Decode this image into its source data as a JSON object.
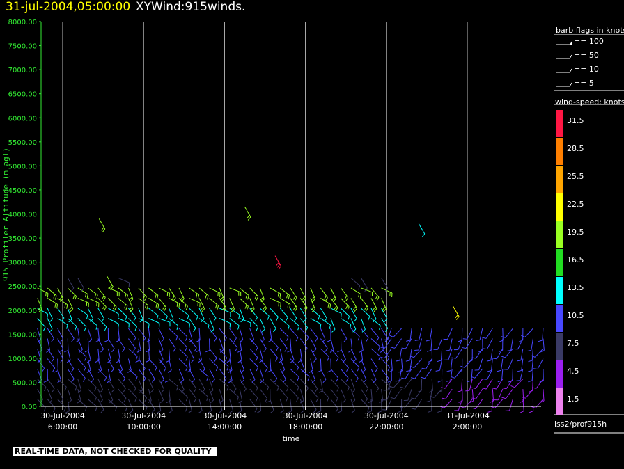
{
  "header": {
    "date": "31-jul-2004,05:00:00",
    "title": "XYWind:915winds."
  },
  "legend": {
    "barb_title": "barb flags in knots",
    "barb_items": [
      "== 100",
      "== 50",
      "== 10",
      "== 5"
    ],
    "speed_title": "wind-speed: knots",
    "speed_levels": [
      {
        "label": "31.5",
        "color": "#ff1744"
      },
      {
        "label": "28.5",
        "color": "#ff7f00"
      },
      {
        "label": "25.5",
        "color": "#ffa500"
      },
      {
        "label": "22.5",
        "color": "#ffff00"
      },
      {
        "label": "19.5",
        "color": "#9aff22"
      },
      {
        "label": "16.5",
        "color": "#22dd22"
      },
      {
        "label": "13.5",
        "color": "#00ffff"
      },
      {
        "label": "10.5",
        "color": "#4848ff"
      },
      {
        "label": "7.5",
        "color": "#3a3a66"
      },
      {
        "label": "4.5",
        "color": "#9b1ff0"
      },
      {
        "label": "1.5",
        "color": "#ee82ee"
      }
    ],
    "source": "iss2/prof915h"
  },
  "notice": "REAL-TIME DATA, NOT CHECKED FOR QUALITY",
  "chart_data": {
    "type": "scatter",
    "title": "XYWind:915winds.",
    "xlabel": "time",
    "ylabel": "915 Profiler Altitude (m agl)",
    "ylim": [
      0,
      8000
    ],
    "yticks": [
      "0.00",
      "500.00",
      "1000.00",
      "1500.00",
      "2000.00",
      "2500.00",
      "3000.00",
      "3500.00",
      "4000.00",
      "4500.00",
      "5000.00",
      "5500.00",
      "6000.00",
      "6500.00",
      "7000.00",
      "7500.00",
      "8000.00"
    ],
    "xticks": [
      {
        "date": "30-Jul-2004",
        "time": "6:00:00"
      },
      {
        "date": "30-Jul-2004",
        "time": "10:00:00"
      },
      {
        "date": "30-Jul-2004",
        "time": "14:00:00"
      },
      {
        "date": "30-Jul-2004",
        "time": "18:00:00"
      },
      {
        "date": "30-Jul-2004",
        "time": "22:00:00"
      },
      {
        "date": "31-Jul-2004",
        "time": "2:00:00"
      }
    ],
    "grid": "vertical lines at x ticks",
    "isolated_barbs": [
      {
        "time_h": 7.8,
        "alt": 3900,
        "speed": 19.5
      },
      {
        "time_h": 8.2,
        "alt": 2700,
        "speed": 19.5
      },
      {
        "time_h": 15.0,
        "alt": 4150,
        "speed": 19.5
      },
      {
        "time_h": 16.5,
        "alt": 3130,
        "speed": 31.5
      },
      {
        "time_h": 23.6,
        "alt": 3800,
        "speed": 13.5
      },
      {
        "time_h": 25.3,
        "alt": 2080,
        "speed": 22.5
      }
    ],
    "profile_columns": {
      "start_time_h": 4.75,
      "end_time_h": 29.75,
      "interval_h": 0.5,
      "lowest_alt": 150,
      "gate_spacing_m": 210
    },
    "profile_speed_by_altitude_band": [
      {
        "alt_range": [
          0,
          700
        ],
        "typical_speed": 7.5
      },
      {
        "alt_range": [
          700,
          1700
        ],
        "typical_speed": 10.5
      },
      {
        "alt_range": [
          1700,
          2100
        ],
        "typical_speed": 13.5
      },
      {
        "alt_range": [
          2100,
          2600
        ],
        "typical_speed": 19.5
      }
    ]
  }
}
